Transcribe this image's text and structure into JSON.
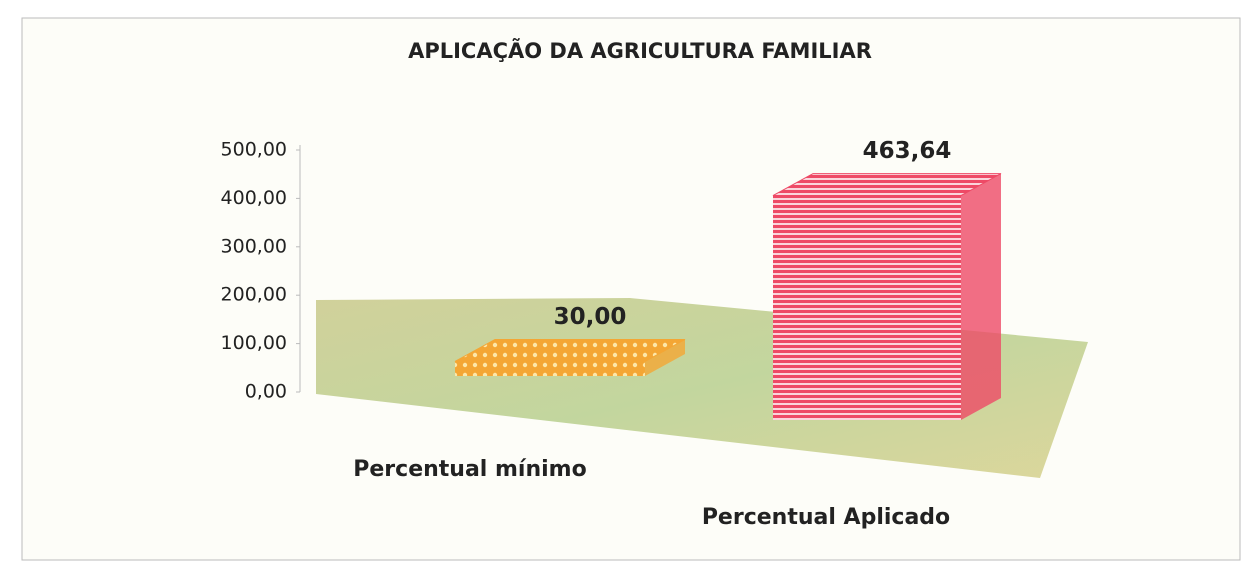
{
  "chart_data": {
    "type": "bar3d",
    "title": "APLICAÇÃO DA AGRICULTURA FAMILIAR",
    "categories": [
      "Percentual mínimo",
      "Percentual Aplicado"
    ],
    "values": [
      30,
      463.64
    ],
    "value_labels": [
      "30,00",
      "463,64"
    ],
    "colors": [
      "#f4a634",
      "#ee4a66"
    ],
    "ylim": [
      0,
      500
    ],
    "yticks": [
      {
        "value": 0,
        "label": "0,00"
      },
      {
        "value": 100,
        "label": "100,00"
      },
      {
        "value": 200,
        "label": "200,00"
      },
      {
        "value": 300,
        "label": "300,00"
      },
      {
        "value": 400,
        "label": "400,00"
      },
      {
        "value": 500,
        "label": "500,00"
      }
    ]
  }
}
